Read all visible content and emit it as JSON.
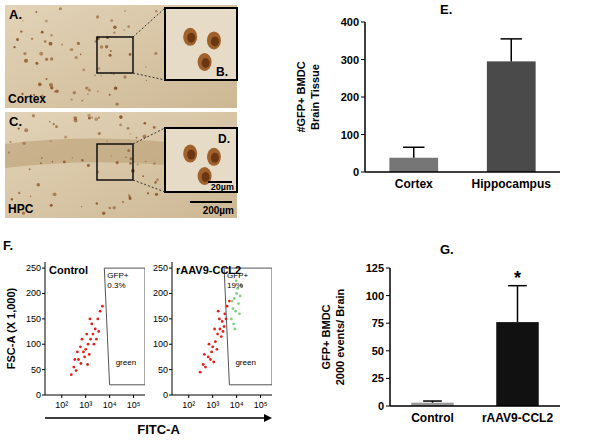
{
  "panels": {
    "A": {
      "label": "A.",
      "region": "Cortex"
    },
    "B": {
      "label": "B."
    },
    "C": {
      "label": "C.",
      "region": "HPC",
      "scale": "200µm"
    },
    "D": {
      "label": "D.",
      "scale": "20µm"
    }
  },
  "chart_data": [
    {
      "panel": "E.",
      "type": "bar",
      "y_label": [
        "#GFP+ BMDC",
        "Brain Tissue"
      ],
      "categories": [
        "Cortex",
        "Hippocampus"
      ],
      "values": [
        38,
        295
      ],
      "errors": [
        28,
        60
      ],
      "colors": [
        "#767676",
        "#4a4a4a"
      ],
      "ylim": [
        0,
        400
      ],
      "yticks": [
        0,
        100,
        200,
        300,
        400
      ],
      "grid": false
    },
    {
      "panel": "F.",
      "type": "scatter",
      "title": "Control",
      "y_label": "FSC-A (X 1,000)",
      "x_label": "FITC-A",
      "log": "x",
      "xlim": [
        20,
        300000
      ],
      "xticks": [
        {
          "value": 100,
          "label": "10²"
        },
        {
          "value": 1000,
          "label": "10³"
        },
        {
          "value": 10000,
          "label": "10⁴"
        },
        {
          "value": 100000,
          "label": "10⁵"
        }
      ],
      "ylim": [
        0,
        262
      ],
      "yticks": [
        0,
        50,
        100,
        150,
        200,
        250
      ],
      "grid": false,
      "series": [
        {
          "color": "#e3211c",
          "x": [
            250,
            320,
            400,
            500,
            630,
            800,
            1000,
            1260,
            1600,
            2000,
            2500,
            3200,
            4000,
            600,
            900,
            1100,
            1400,
            1800,
            2200,
            700,
            350,
            1500,
            2800,
            450,
            1200,
            5000,
            3500
          ],
          "values": [
            40,
            55,
            48,
            70,
            62,
            85,
            90,
            100,
            110,
            120,
            130,
            150,
            165,
            95,
            75,
            120,
            80,
            140,
            100,
            110,
            70,
            150,
            110,
            85,
            60,
            175,
            125
          ]
        }
      ],
      "gate": {
        "x": [
          10000,
          300000,
          300000,
          6000
        ],
        "y": [
          20,
          20,
          250,
          250
        ],
        "texts": [
          "GFP+",
          "0.3%",
          "green"
        ]
      }
    },
    {
      "type": "scatter",
      "title": "rAAV9-CCL2",
      "log": "x",
      "xlim": [
        20,
        300000
      ],
      "xticks": [
        {
          "value": 100,
          "label": "10²"
        },
        {
          "value": 1000,
          "label": "10³"
        },
        {
          "value": 10000,
          "label": "10⁴"
        },
        {
          "value": 100000,
          "label": "10⁵"
        }
      ],
      "ylim": [
        0,
        262
      ],
      "yticks": [
        0,
        50,
        100,
        150,
        200,
        250
      ],
      "grid": false,
      "series": [
        {
          "color": "#e3211c",
          "x": [
            300,
            400,
            500,
            650,
            800,
            1000,
            1300,
            1600,
            2000,
            2500,
            3200,
            4000,
            5000,
            700,
            900,
            1200,
            1500,
            1900,
            2300,
            3000,
            450,
            1700,
            2700,
            1100,
            3600
          ],
          "values": [
            45,
            60,
            55,
            75,
            70,
            95,
            105,
            120,
            130,
            145,
            160,
            175,
            185,
            100,
            85,
            130,
            90,
            150,
            115,
            135,
            80,
            165,
            125,
            65,
            150
          ]
        },
        {
          "color": "#7fd07f",
          "x": [
            6000,
            7000,
            8000,
            9000,
            10000,
            12000,
            7500,
            11000,
            14000,
            6500,
            9500,
            8500,
            13000,
            16000
          ],
          "values": [
            150,
            170,
            190,
            165,
            200,
            180,
            140,
            210,
            195,
            185,
            225,
            130,
            160,
            215
          ]
        }
      ],
      "gate": {
        "x": [
          5000,
          300000,
          300000,
          3000
        ],
        "y": [
          20,
          20,
          250,
          250
        ],
        "texts": [
          "GFP+",
          "19%",
          "green"
        ]
      }
    },
    {
      "panel": "G.",
      "type": "bar",
      "y_label": [
        "GFP+ BMDC",
        "2000 events/ Brain"
      ],
      "categories": [
        "Control",
        "rAAV9-CCL2"
      ],
      "values": [
        3,
        76
      ],
      "errors": [
        1.5,
        33
      ],
      "colors": [
        "#9a9a9a",
        "#111111"
      ],
      "ylim": [
        0,
        125
      ],
      "yticks": [
        0,
        25,
        50,
        75,
        100,
        125
      ],
      "grid": false,
      "annotations": [
        {
          "text": "*",
          "category": 1
        }
      ]
    }
  ]
}
